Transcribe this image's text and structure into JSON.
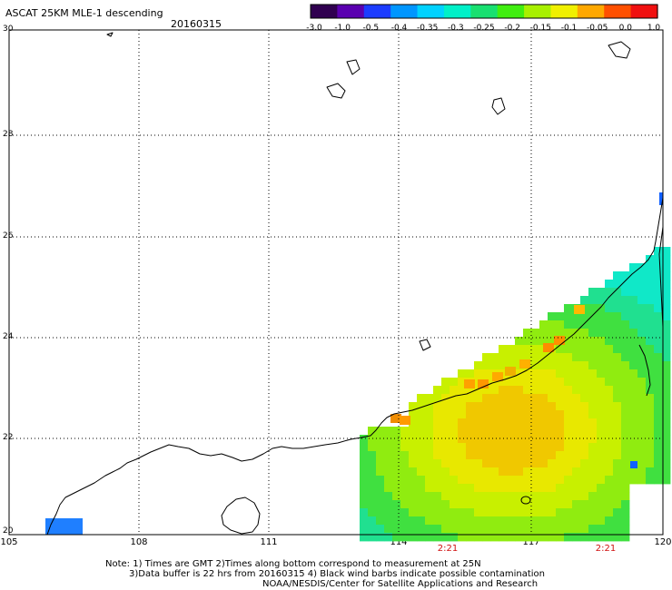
{
  "title": "ASCAT 25KM MLE-1 descending",
  "date": "20160315",
  "colorbar": {
    "labels": [
      "-3.0",
      "-1.0",
      "-0.5",
      "-0.4",
      "-0.35",
      "-0.3",
      "-0.25",
      "-0.2",
      "-0.15",
      "-0.1",
      "-0.05",
      "0.0",
      "1.0"
    ],
    "colors": [
      "#300050",
      "#5a00b0",
      "#1c3cff",
      "#0096ff",
      "#00d2ff",
      "#00f0c8",
      "#18e070",
      "#40ee10",
      "#a8f000",
      "#f0f000",
      "#ffa800",
      "#ff5000",
      "#f01010"
    ]
  },
  "axes": {
    "lat_labels": [
      "30",
      "28",
      "26",
      "24",
      "22",
      "20"
    ],
    "lon_labels": [
      "105",
      "108",
      "111",
      "114",
      "117",
      "120"
    ]
  },
  "pass_times": [
    "2:21",
    "2:21"
  ],
  "notes": [
    "Note: 1) Times are GMT 2)Times along bottom correspond to measurement at 25N",
    "3)Data buffer is 22 hrs from 20160315 4) Black wind barbs indicate possible contamination",
    "NOAA/NESDIS/Center for Satellite Applications and Research"
  ]
}
